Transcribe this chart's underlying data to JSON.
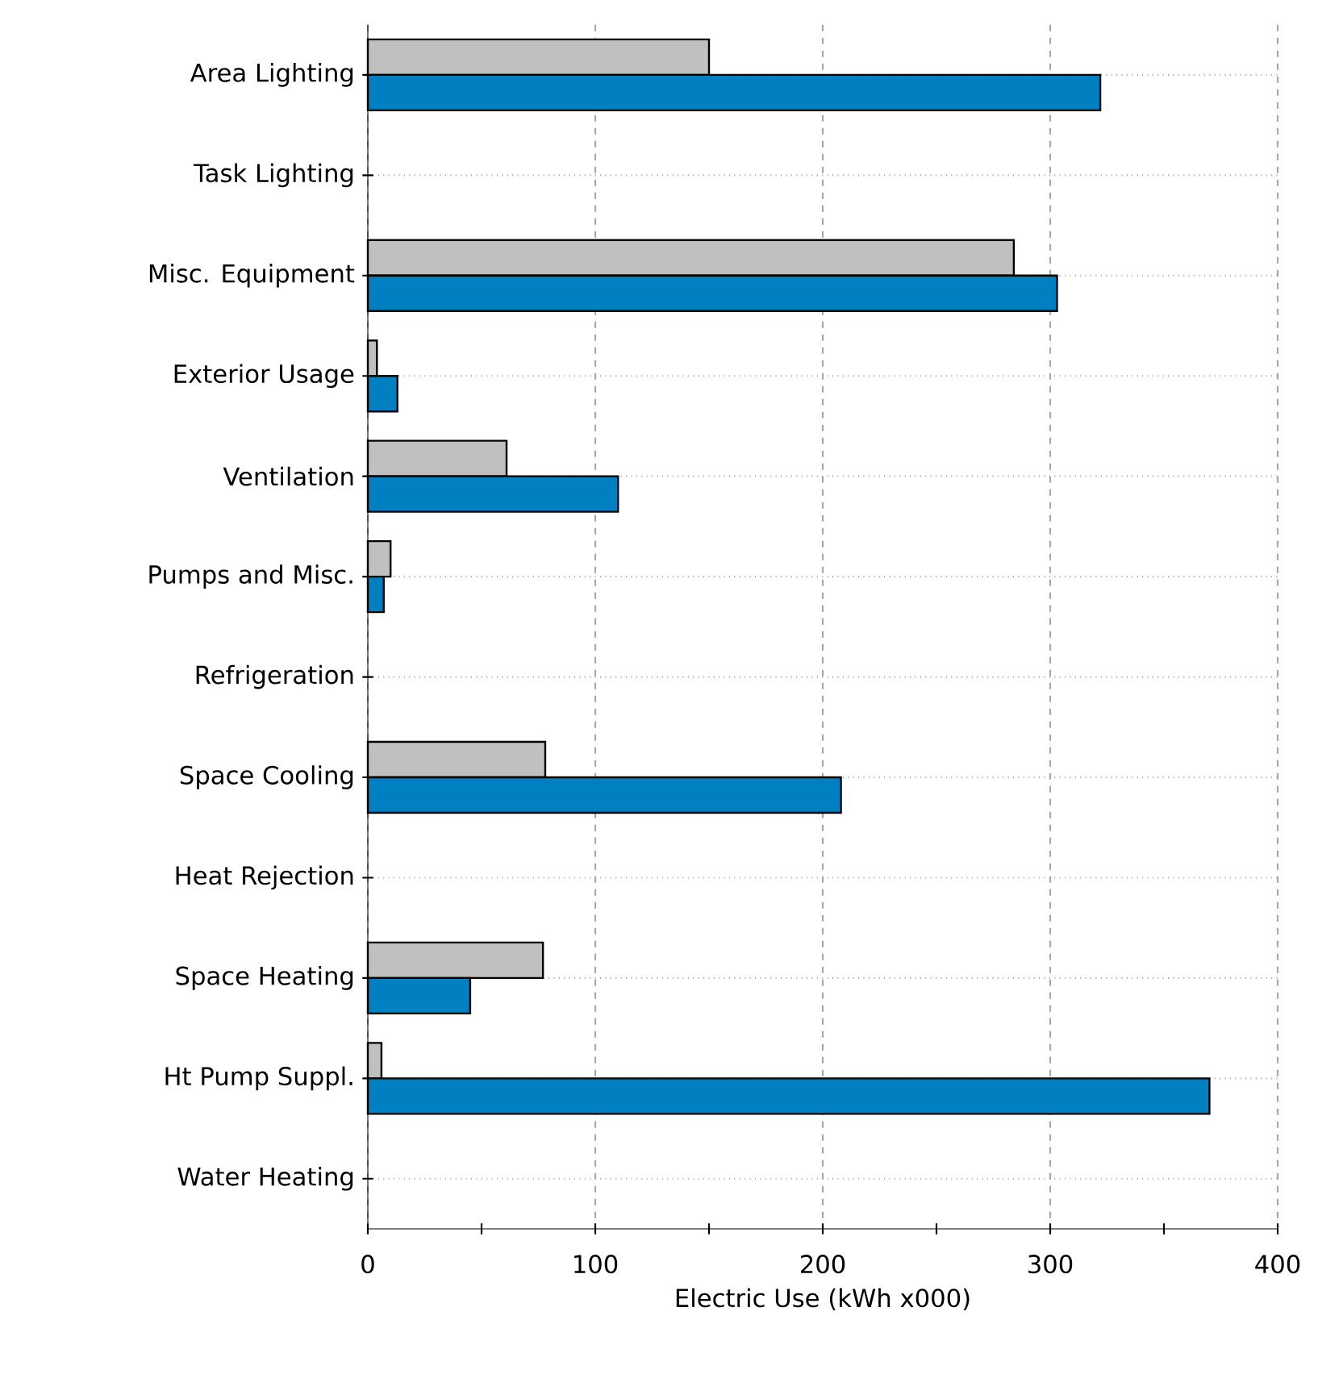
{
  "chart_data": {
    "type": "bar",
    "orientation": "horizontal",
    "xlabel": "Electric Use (kWh x000)",
    "categories": [
      "Area Lighting",
      "Task Lighting",
      "Misc. Equipment",
      "Exterior Usage",
      "Ventilation",
      "Pumps and Misc.",
      "Refrigeration",
      "Space Cooling",
      "Heat Rejection",
      "Space Heating",
      "Ht Pump Suppl.",
      "Water Heating"
    ],
    "series": [
      {
        "color": "#c0c0c0",
        "values": [
          150,
          0,
          284,
          4,
          61,
          10,
          0,
          78,
          0,
          77,
          6,
          0
        ]
      },
      {
        "color": "#0080c0",
        "values": [
          322,
          0,
          303,
          13,
          110,
          7,
          0,
          208,
          0,
          45,
          370,
          0
        ]
      }
    ],
    "xlim": [
      0,
      400
    ],
    "xticks": [
      0,
      100,
      200,
      300,
      400
    ],
    "grid": true
  }
}
